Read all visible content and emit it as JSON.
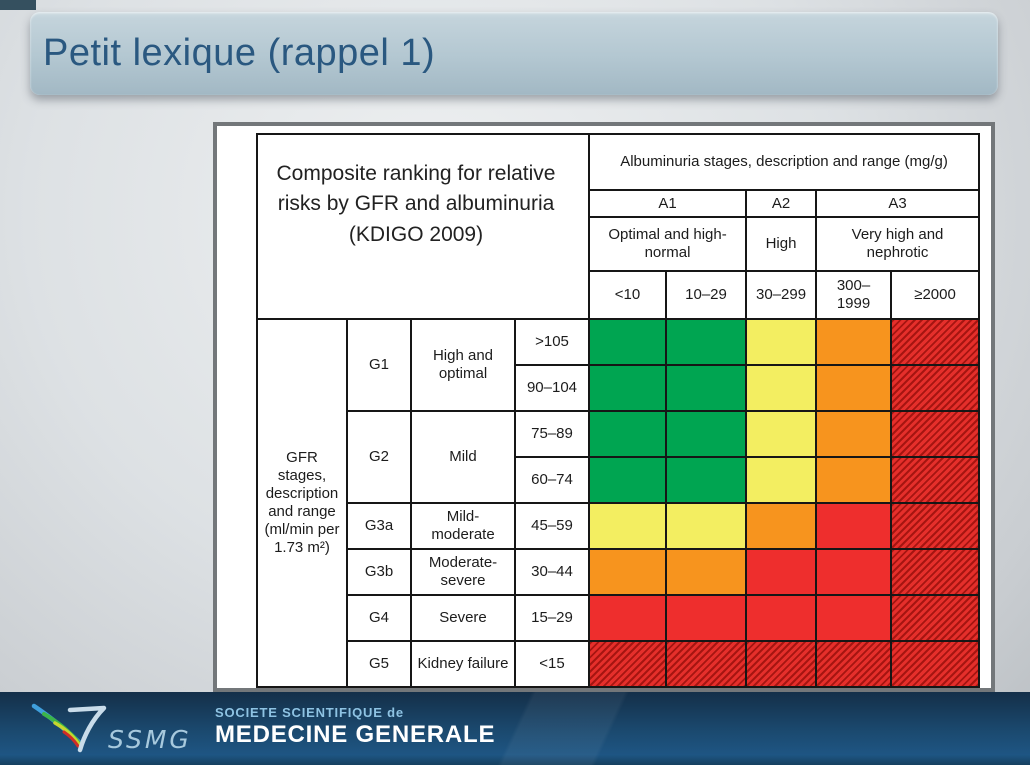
{
  "slide": {
    "title": "Petit lexique (rappel 1)"
  },
  "chart_data": {
    "type": "heatmap",
    "title": "Composite ranking for relative risks by GFR and albuminuria (KDIGO 2009)",
    "albuminuria": {
      "header": "Albuminuria stages, description and range (mg/g)",
      "groups": [
        {
          "code": "A1",
          "label": "Optimal and high-normal",
          "ranges": [
            "<10",
            "10–29"
          ]
        },
        {
          "code": "A2",
          "label": "High",
          "ranges": [
            "30–299"
          ]
        },
        {
          "code": "A3",
          "label": "Very high and nephrotic",
          "ranges": [
            "300– 1999",
            "≥2000"
          ]
        }
      ]
    },
    "gfr": {
      "header": "GFR stages, description and range (ml/min per 1.73 m²)",
      "groups": [
        {
          "code": "G1",
          "label": "High and optimal",
          "ranges": [
            ">105",
            "90–104"
          ]
        },
        {
          "code": "G2",
          "label": "Mild",
          "ranges": [
            "75–89",
            "60–74"
          ]
        },
        {
          "code": "G3a",
          "label": "Mild- moderate",
          "ranges": [
            "45–59"
          ]
        },
        {
          "code": "G3b",
          "label": "Moderate- severe",
          "ranges": [
            "30–44"
          ]
        },
        {
          "code": "G4",
          "label": "Severe",
          "ranges": [
            "15–29"
          ]
        },
        {
          "code": "G5",
          "label": "Kidney failure",
          "ranges": [
            "<15"
          ]
        }
      ]
    },
    "risk_colors": {
      "green": "#00a551",
      "yellow": "#f3ee61",
      "orange": "#f7941e",
      "red": "#ee2e2d",
      "red_hatched_base": "#e52f2b",
      "red_hatched_stripe": "#a61511"
    },
    "values": [
      [
        "green",
        "green",
        "yellow",
        "orange",
        "red_hatched"
      ],
      [
        "green",
        "green",
        "yellow",
        "orange",
        "red_hatched"
      ],
      [
        "green",
        "green",
        "yellow",
        "orange",
        "red_hatched"
      ],
      [
        "green",
        "green",
        "yellow",
        "orange",
        "red_hatched"
      ],
      [
        "yellow",
        "yellow",
        "orange",
        "red",
        "red_hatched"
      ],
      [
        "orange",
        "orange",
        "red",
        "red",
        "red_hatched"
      ],
      [
        "red",
        "red",
        "red",
        "red",
        "red_hatched"
      ],
      [
        "red_hatched",
        "red_hatched",
        "red_hatched",
        "red_hatched",
        "red_hatched"
      ]
    ]
  },
  "footer": {
    "logo_text": "SSMG",
    "org_line1": "SOCIETE SCIENTIFIQUE de",
    "org_line2": "MEDECINE GENERALE",
    "bar_color": "#1a4a70",
    "line1_color": "#8ec3e3",
    "line2_color": "#ffffff"
  }
}
